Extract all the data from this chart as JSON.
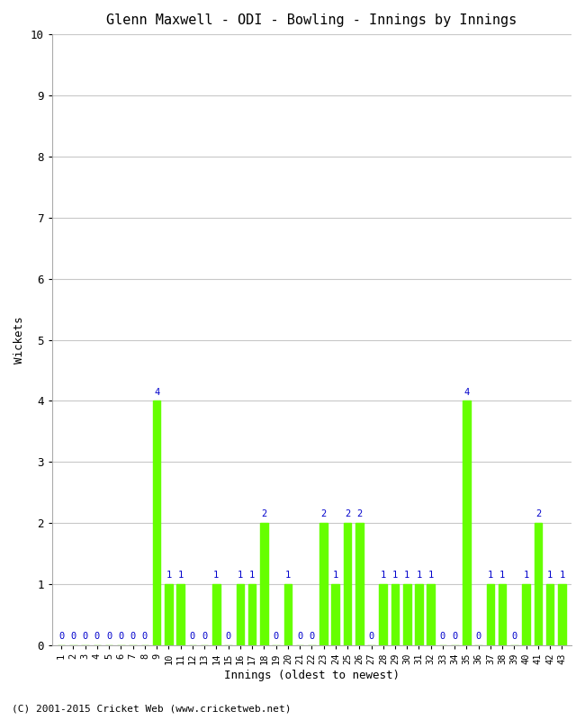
{
  "title": "Glenn Maxwell - ODI - Bowling - Innings by Innings",
  "xlabel": "Innings (oldest to newest)",
  "ylabel": "Wickets",
  "ylim": [
    0,
    10
  ],
  "yticks": [
    0,
    1,
    2,
    3,
    4,
    5,
    6,
    7,
    8,
    9,
    10
  ],
  "bar_color": "#66ff00",
  "label_color": "#0000cc",
  "background_color": "#ffffff",
  "grid_color": "#c8c8c8",
  "wickets": [
    0,
    0,
    0,
    0,
    0,
    0,
    0,
    0,
    4,
    1,
    1,
    0,
    0,
    1,
    0,
    1,
    1,
    2,
    0,
    1,
    0,
    0,
    2,
    1,
    2,
    2,
    0,
    1,
    1,
    1,
    1,
    1,
    0,
    0,
    4,
    0,
    1,
    1,
    0,
    1,
    2,
    1,
    1
  ],
  "footer": "(C) 2001-2015 Cricket Web (www.cricketweb.net)",
  "title_fontsize": 11,
  "axis_label_fontsize": 9,
  "tick_label_fontsize": 9,
  "bar_label_fontsize": 7.5,
  "footer_fontsize": 8,
  "fig_width": 6.5,
  "fig_height": 8.0,
  "dpi": 100
}
